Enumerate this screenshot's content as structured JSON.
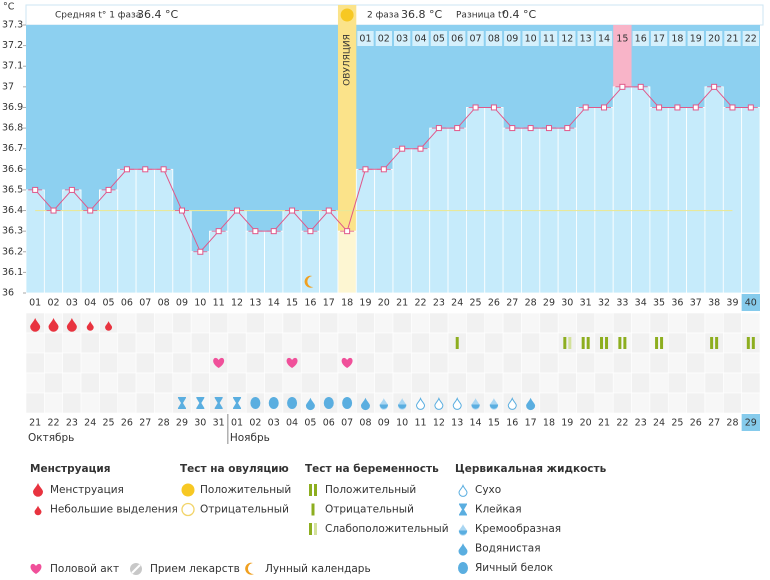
{
  "unit": "°C",
  "header": {
    "phase1_label": "Средняя t° 1 фаза",
    "phase1_value": "36.4 °C",
    "phase2_label": "2 фаза",
    "phase2_value": "36.8 °C",
    "diff_label": "Разница t°",
    "diff_value": "0.4 °C"
  },
  "chart_data": {
    "type": "line",
    "color": "#e0588a",
    "categories": [
      "01",
      "02",
      "03",
      "04",
      "05",
      "06",
      "07",
      "08",
      "09",
      "10",
      "11",
      "12",
      "13",
      "14",
      "15",
      "16",
      "17",
      "18",
      "19",
      "20",
      "21",
      "22",
      "23",
      "24",
      "25",
      "26",
      "27",
      "28",
      "29",
      "30",
      "31",
      "32",
      "33",
      "34",
      "35",
      "36",
      "37",
      "38",
      "39",
      "40"
    ],
    "values": [
      36.5,
      36.4,
      36.5,
      36.4,
      36.5,
      36.6,
      36.6,
      36.6,
      36.4,
      36.2,
      36.3,
      36.4,
      36.3,
      36.3,
      36.4,
      36.3,
      36.4,
      36.3,
      36.6,
      36.6,
      36.7,
      36.7,
      36.8,
      36.8,
      36.9,
      36.9,
      36.8,
      36.8,
      36.8,
      36.8,
      36.9,
      36.9,
      37,
      37,
      36.9,
      36.9,
      36.9,
      37,
      36.9,
      36.9
    ],
    "ylim": [
      36,
      37.3
    ],
    "yticks": [
      36,
      36.1,
      36.2,
      36.3,
      36.4,
      36.5,
      36.6,
      36.7,
      36.8,
      36.9,
      37,
      37.1,
      37.2,
      37.3
    ],
    "coverline": 36.4,
    "ovulation_label": "ОВУЛЯЦИЯ",
    "phase2_days": [
      null,
      null,
      null,
      null,
      null,
      null,
      null,
      null,
      null,
      null,
      null,
      null,
      null,
      null,
      null,
      null,
      null,
      null,
      "01",
      "02",
      "03",
      "04",
      "05",
      "06",
      "07",
      "08",
      "09",
      "10",
      "11",
      "12",
      "13",
      "14",
      "15",
      "16",
      "17",
      "18",
      "19",
      "20",
      "21",
      "22"
    ],
    "states": [
      null,
      null,
      null,
      null,
      null,
      null,
      null,
      null,
      null,
      null,
      null,
      null,
      null,
      null,
      null,
      null,
      null,
      null,
      null,
      null,
      null,
      null,
      null,
      null,
      null,
      null,
      null,
      null,
      null,
      null,
      null,
      null,
      "peak",
      null,
      null,
      null,
      null,
      null,
      null,
      "today"
    ],
    "ovulation_test": [
      null,
      null,
      null,
      null,
      null,
      null,
      null,
      null,
      null,
      null,
      null,
      null,
      null,
      null,
      null,
      null,
      null,
      "positive",
      null,
      null,
      null,
      null,
      null,
      null,
      null,
      null,
      null,
      null,
      null,
      null,
      null,
      null,
      null,
      null,
      null,
      null,
      null,
      null,
      null,
      null
    ],
    "lunar": [
      false,
      false,
      false,
      false,
      false,
      false,
      false,
      false,
      false,
      false,
      false,
      false,
      false,
      false,
      false,
      true,
      false,
      false,
      false,
      false,
      false,
      false,
      false,
      false,
      false,
      false,
      false,
      false,
      false,
      false,
      false,
      false,
      false,
      false,
      false,
      false,
      false,
      false,
      false,
      false
    ],
    "menstruation": [
      "heavy",
      "heavy",
      "heavy",
      "light",
      "light",
      null,
      null,
      null,
      null,
      null,
      null,
      null,
      null,
      null,
      null,
      null,
      null,
      null,
      null,
      null,
      null,
      null,
      null,
      null,
      null,
      null,
      null,
      null,
      null,
      null,
      null,
      null,
      null,
      null,
      null,
      null,
      null,
      null,
      null,
      null
    ],
    "pregnancy_test": [
      null,
      null,
      null,
      null,
      null,
      null,
      null,
      null,
      null,
      null,
      null,
      null,
      null,
      null,
      null,
      null,
      null,
      null,
      null,
      null,
      null,
      null,
      null,
      "negative",
      null,
      null,
      null,
      null,
      null,
      "weak",
      "positive",
      "positive",
      "positive",
      null,
      "positive",
      null,
      null,
      "positive",
      null,
      "positive"
    ],
    "sex": [
      false,
      false,
      false,
      false,
      false,
      false,
      false,
      false,
      false,
      false,
      true,
      false,
      false,
      false,
      true,
      false,
      false,
      true,
      false,
      false,
      false,
      false,
      false,
      false,
      false,
      false,
      false,
      false,
      false,
      false,
      false,
      false,
      false,
      false,
      false,
      false,
      false,
      false,
      false,
      false
    ],
    "fluid": [
      null,
      null,
      null,
      null,
      null,
      null,
      null,
      null,
      "sticky",
      "sticky",
      "sticky",
      "sticky",
      "eggwhite",
      "eggwhite",
      "eggwhite",
      "watery",
      "eggwhite",
      "eggwhite",
      "watery",
      "creamy",
      "creamy",
      "dry",
      "dry",
      "dry",
      "creamy",
      "creamy",
      "dry",
      "watery",
      null,
      null,
      null,
      null,
      null,
      null,
      null,
      null,
      null,
      null,
      null,
      null
    ],
    "dates": [
      "21",
      "22",
      "23",
      "24",
      "25",
      "26",
      "27",
      "28",
      "29",
      "30",
      "31",
      "01",
      "02",
      "03",
      "04",
      "05",
      "06",
      "07",
      "08",
      "09",
      "10",
      "11",
      "12",
      "13",
      "14",
      "15",
      "16",
      "17",
      "18",
      "19",
      "20",
      "21",
      "22",
      "23",
      "24",
      "25",
      "26",
      "27",
      "28",
      "29"
    ],
    "weekend": [
      false,
      false,
      false,
      true,
      true,
      false,
      false,
      false,
      false,
      false,
      true,
      true,
      false,
      false,
      false,
      false,
      false,
      true,
      true,
      false,
      false,
      false,
      false,
      false,
      true,
      true,
      false,
      false,
      false,
      false,
      false,
      true,
      true,
      false,
      false,
      false,
      false,
      false,
      true,
      true
    ],
    "months": [
      "Октябрь",
      null,
      null,
      null,
      null,
      null,
      null,
      null,
      null,
      null,
      null,
      "Ноябрь",
      null,
      null,
      null,
      null,
      null,
      null,
      null,
      null,
      null,
      null,
      null,
      null,
      null,
      null,
      null,
      null,
      null,
      null,
      null,
      null,
      null,
      null,
      null,
      null,
      null,
      null,
      null,
      null
    ]
  },
  "legend": [
    {
      "title": "Менструация",
      "items": [
        {
          "label": "Менструация",
          "icon": "heavy"
        },
        {
          "label": "Небольшие выделения",
          "icon": "light"
        }
      ]
    },
    {
      "title": "Тест на овуляцию",
      "items": [
        {
          "label": "Положительный",
          "icon": "ov-positive"
        },
        {
          "label": "Отрицательный",
          "icon": "ov-negative"
        }
      ]
    },
    {
      "title": "Тест на беременность",
      "items": [
        {
          "label": "Положительный",
          "icon": "positive"
        },
        {
          "label": "Отрицательный",
          "icon": "negative"
        },
        {
          "label": "Слабоположительный",
          "icon": "weak"
        }
      ]
    },
    {
      "title": "Цервикальная жидкость",
      "items": [
        {
          "label": "Сухо",
          "icon": "dry"
        },
        {
          "label": "Клейкая",
          "icon": "sticky"
        },
        {
          "label": "Кремообразная",
          "icon": "creamy"
        },
        {
          "label": "Водянистая",
          "icon": "watery"
        },
        {
          "label": "Яичный белок",
          "icon": "eggwhite"
        }
      ]
    }
  ],
  "legend_extra": [
    {
      "label": "Половой акт",
      "icon": "heart"
    },
    {
      "label": "Прием лекарств",
      "icon": "pill"
    },
    {
      "label": "Лунный календарь",
      "icon": "moon"
    }
  ]
}
